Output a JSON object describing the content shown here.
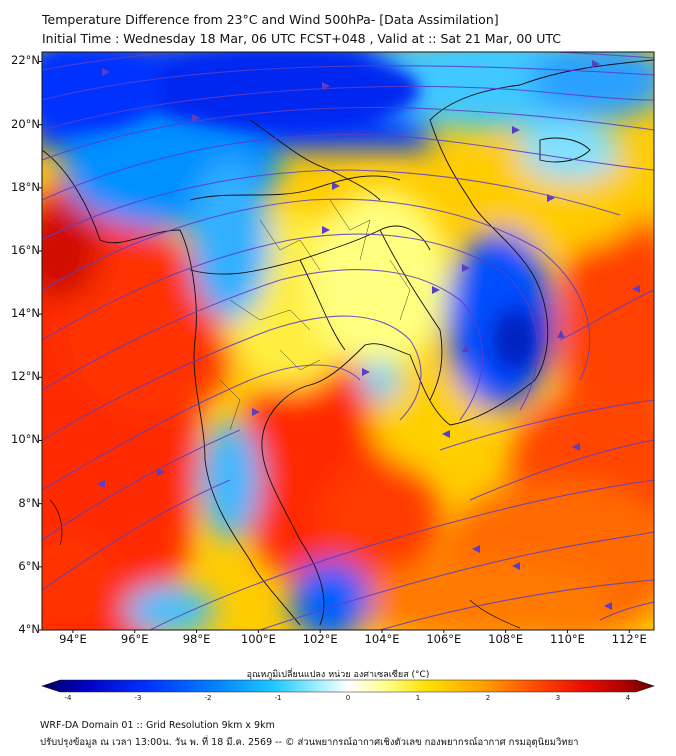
{
  "title": {
    "line1": "Temperature Difference from 23°C and Wind 500hPa- [Data Assimilation]",
    "line2": "Initial Time : Wednesday 18 Mar, 06 UTC FCST+048 , Valid at ::  Sat 21 Mar, 00 UTC"
  },
  "axes": {
    "lat_labels": [
      "22°N",
      "20°N",
      "18°N",
      "16°N",
      "14°N",
      "12°N",
      "10°N",
      "8°N",
      "6°N",
      "4°N"
    ],
    "lat_values": [
      22,
      20,
      18,
      16,
      14,
      12,
      10,
      8,
      6,
      4
    ],
    "lon_labels": [
      "94°E",
      "96°E",
      "98°E",
      "100°E",
      "102°E",
      "104°E",
      "106°E",
      "108°E",
      "110°E",
      "112°E"
    ],
    "lon_values": [
      94,
      96,
      98,
      100,
      102,
      104,
      106,
      108,
      110,
      112
    ],
    "lat_range": [
      4,
      22.3
    ],
    "lon_range": [
      93,
      112.8
    ]
  },
  "colorbar": {
    "label": "อุณหภูมิเปลี่ยนแปลง หน่วย องศาเซลเซียส (°C)",
    "ticks": [
      "-4",
      "-3",
      "-2",
      "-1",
      "0",
      "1",
      "2",
      "3",
      "4"
    ],
    "range": [
      -4,
      4
    ],
    "colors": [
      "#000060",
      "#0000c0",
      "#0030ff",
      "#0070ff",
      "#00aaff",
      "#40d8ff",
      "#a0f0ff",
      "#ffffff",
      "#ffff80",
      "#ffe000",
      "#ffb000",
      "#ff7000",
      "#ff2000",
      "#d00000",
      "#600000"
    ]
  },
  "footer": {
    "line1": "WRF-DA Domain 01 :: Grid Resolution 9km x 9km",
    "line2": "ปรับปรุงข้อมูล ณ เวลา 13:00น. วัน พ. ที่ 18 มี.ค. 2569 -- © ส่วนพยากรณ์อากาศเชิงตัวเลข กองพยากรณ์อากาศ กรมอุตุนิยมวิทยา"
  },
  "colors": {
    "stream": "#5a3ec8",
    "border": "#111111"
  }
}
